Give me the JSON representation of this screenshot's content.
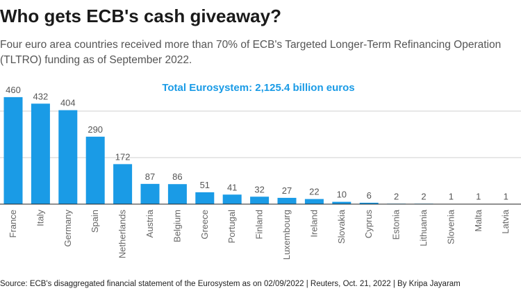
{
  "header": {
    "title": "Who gets ECB's cash giveaway?",
    "subtitle": "Four euro area countries received more than 70% of ECB's Targeted Longer-Term Refinancing Operation (TLTRO) funding as of September 2022."
  },
  "footer": {
    "source": "Source: ECB's disaggregated financial statement of the Eurosystem as on 02/09/2022 | Reuters, Oct. 21, 2022 | By Kripa Jayaram"
  },
  "colors": {
    "bar": "#1a9be6",
    "annotation": "#1a9be6",
    "grid": "#cfcfcf",
    "axis": "#222222",
    "value_label": "#555555",
    "tick_label": "#666666"
  },
  "chart_data": {
    "type": "bar",
    "title": "Who gets ECB's cash giveaway?",
    "annotation": "Total Eurosystem: 2,125.4 billion euros",
    "categories": [
      "France",
      "Italy",
      "Germany",
      "Spain",
      "Netherlands",
      "Austria",
      "Belgium",
      "Greece",
      "Portugal",
      "Finland",
      "Luxembourg",
      "Ireland",
      "Slovakia",
      "Cyprus",
      "Estonia",
      "Lithuania",
      "Slovenia",
      "Malta",
      "Latvia"
    ],
    "values": [
      460,
      432,
      404,
      290,
      172,
      87,
      86,
      51,
      41,
      32,
      27,
      22,
      10,
      6,
      2,
      2,
      1,
      1,
      1
    ],
    "xlabel": "",
    "ylabel": "",
    "ylim": [
      0,
      470
    ],
    "grid": true,
    "gridlines": [
      200,
      400
    ],
    "tick_label_rotation": "vertical"
  }
}
